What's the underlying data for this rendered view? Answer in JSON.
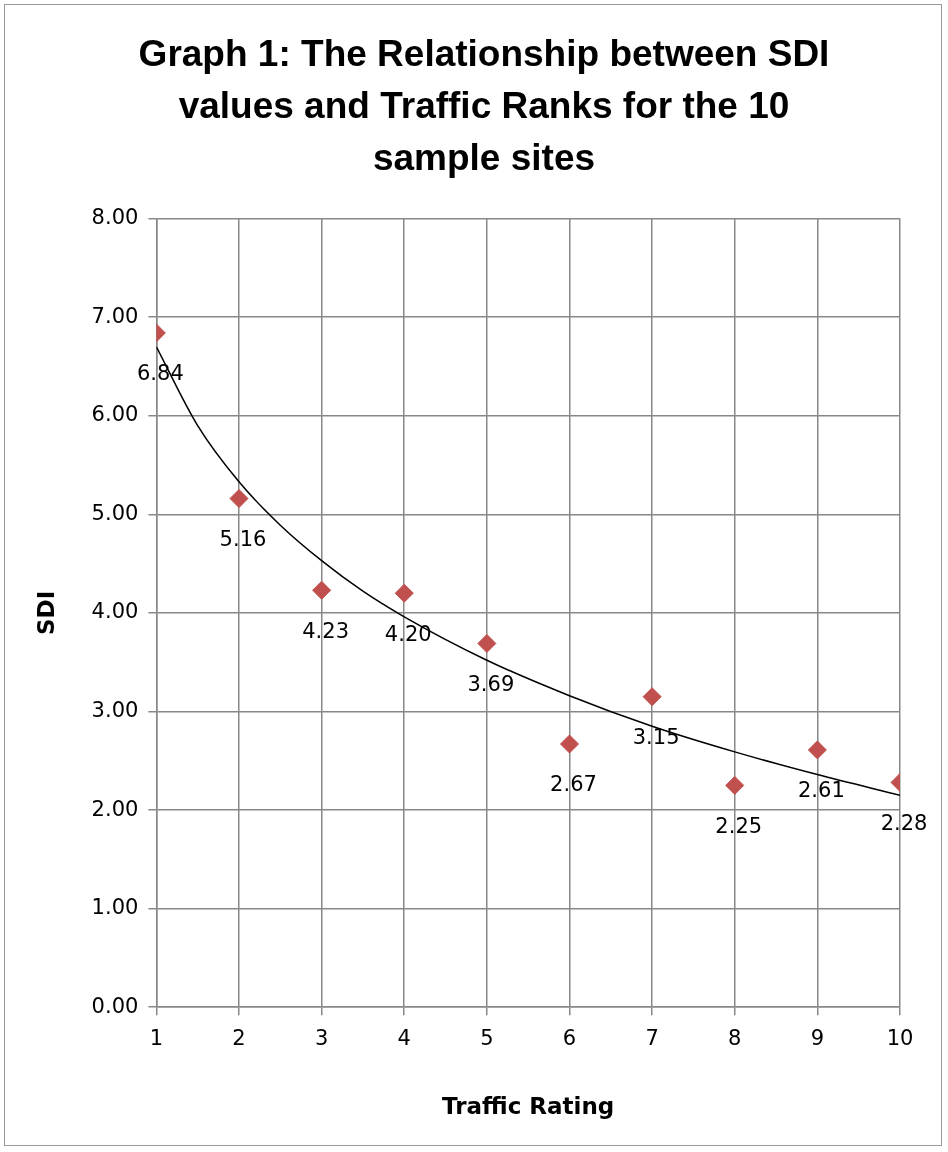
{
  "chart_data": {
    "type": "scatter",
    "title": "Graph 1: The Relationship between SDI values and Traffic Ranks for the 10 sample sites",
    "xlabel": "Traffic Rating",
    "ylabel": "SDI",
    "series": [
      {
        "marker": "diamond",
        "color": "#c0504d",
        "x": [
          1,
          2,
          3,
          4,
          5,
          6,
          7,
          8,
          9,
          10
        ],
        "values": [
          6.84,
          5.16,
          4.23,
          4.2,
          3.69,
          2.67,
          3.15,
          2.25,
          2.61,
          2.28
        ],
        "value_labels": [
          "6.84",
          "5.16",
          "4.23",
          "4.20",
          "3.69",
          "2.67",
          "3.15",
          "2.25",
          "2.61",
          "2.28"
        ]
      },
      {
        "type": "line",
        "marker": "none",
        "color": "#000000",
        "x": [
          1,
          1.5,
          2,
          2.5,
          3,
          3.5,
          4,
          5,
          6,
          7,
          8,
          9,
          10
        ],
        "values": [
          6.7,
          5.9,
          5.33,
          4.89,
          4.53,
          4.22,
          3.96,
          3.52,
          3.16,
          2.85,
          2.59,
          2.36,
          2.15
        ]
      }
    ],
    "xlim": [
      1,
      10
    ],
    "xticks": [
      1,
      2,
      3,
      4,
      5,
      6,
      7,
      8,
      9,
      10
    ],
    "ylim": [
      0,
      8
    ],
    "yticks": [
      {
        "value": 0,
        "label": "0.00"
      },
      {
        "value": 1,
        "label": "1.00"
      },
      {
        "value": 2,
        "label": "2.00"
      },
      {
        "value": 3,
        "label": "3.00"
      },
      {
        "value": 4,
        "label": "4.00"
      },
      {
        "value": 5,
        "label": "5.00"
      },
      {
        "value": 6,
        "label": "6.00"
      },
      {
        "value": 7,
        "label": "7.00"
      },
      {
        "value": 8,
        "label": "8.00"
      }
    ],
    "grid": true,
    "legend": false
  }
}
